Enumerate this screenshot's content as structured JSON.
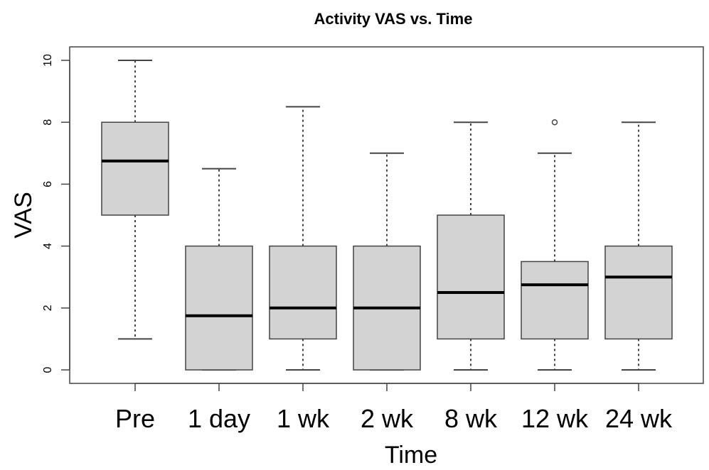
{
  "chart_data": {
    "type": "boxplot",
    "title": "Activity VAS vs. Time",
    "xlabel": "Time",
    "ylabel": "VAS",
    "ylim": [
      -0.5,
      10.5
    ],
    "yticks": [
      "0",
      "2",
      "4",
      "6",
      "8",
      "10"
    ],
    "categories": [
      "Pre",
      "1 day",
      "1 wk",
      "2 wk",
      "8 wk",
      "12 wk",
      "24 wk"
    ],
    "boxes": [
      {
        "min": 1,
        "q1": 5,
        "median": 6.75,
        "q3": 8,
        "max": 10,
        "outliers": []
      },
      {
        "min": 0,
        "q1": 0,
        "median": 1.75,
        "q3": 4,
        "max": 6.5,
        "outliers": []
      },
      {
        "min": 0,
        "q1": 1,
        "median": 2,
        "q3": 4,
        "max": 8.5,
        "outliers": []
      },
      {
        "min": 0,
        "q1": 0,
        "median": 2,
        "q3": 4,
        "max": 7,
        "outliers": []
      },
      {
        "min": 0,
        "q1": 1,
        "median": 2.5,
        "q3": 5,
        "max": 8,
        "outliers": []
      },
      {
        "min": 0,
        "q1": 1,
        "median": 2.75,
        "q3": 3.5,
        "max": 7,
        "outliers": [
          8
        ]
      },
      {
        "min": 0,
        "q1": 1,
        "median": 3,
        "q3": 4,
        "max": 8,
        "outliers": []
      }
    ],
    "box_fill": "#d3d3d3",
    "stroke_color": "#444444",
    "grid": false,
    "legend": "none"
  }
}
